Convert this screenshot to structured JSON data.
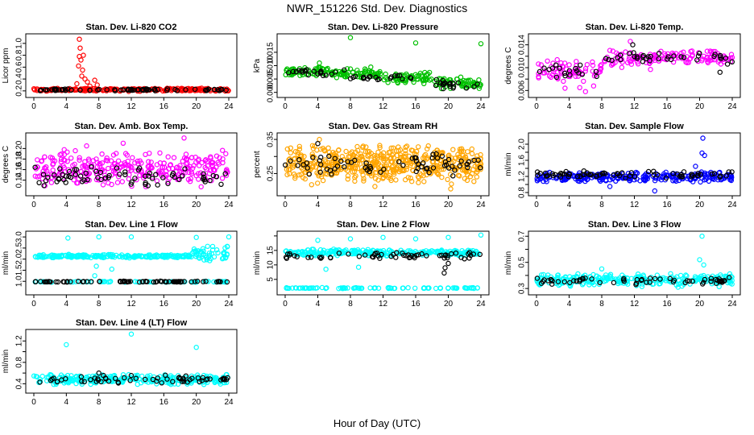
{
  "figure": {
    "title": "NWR_151226  Std. Dev. Diagnostics",
    "xlabel": "Hour of Day (UTC)"
  },
  "chart_data": [
    {
      "type": "scatter",
      "title": "Stan. Dev. Li-820 CO2",
      "ylabel": "Licor ppm",
      "xlim": [
        0,
        24
      ],
      "ylim": [
        0.13,
        1.12
      ],
      "xticks": [
        "0",
        "4",
        "8",
        "12",
        "16",
        "20",
        "24"
      ],
      "yticks": [
        0.2,
        0.4,
        0.6,
        0.8,
        1.0
      ],
      "ytick_labels": [
        "0.2",
        "0.4",
        "0.6",
        "0.8",
        "1.0"
      ],
      "series": [
        {
          "color": "#ff0000",
          "density": 220,
          "bands": [
            [
              0,
              24,
              0.19,
              0.25
            ]
          ],
          "points": [
            [
              5.6,
              1.07
            ],
            [
              5.7,
              0.92
            ],
            [
              5.6,
              0.78
            ],
            [
              5.8,
              0.72
            ],
            [
              6.0,
              0.55
            ],
            [
              5.9,
              0.45
            ],
            [
              6.3,
              0.4
            ],
            [
              6.6,
              0.35
            ],
            [
              7.5,
              0.38
            ],
            [
              7.8,
              0.3
            ],
            [
              5.3,
              0.32
            ],
            [
              6.9,
              0.28
            ],
            [
              5.5,
              0.62
            ],
            [
              6.1,
              0.8
            ]
          ]
        },
        {
          "color": "#000000",
          "density": 70,
          "bands": [
            [
              0,
              24,
              0.2,
              0.24
            ]
          ],
          "points": []
        }
      ]
    },
    {
      "type": "scatter",
      "title": "Stan. Dev. Li-820 Pressure",
      "ylabel": "kPa",
      "xlim": [
        0,
        24
      ],
      "ylim": [
        -0.001,
        0.021
      ],
      "xticks": [
        "0",
        "4",
        "8",
        "12",
        "16",
        "20",
        "24"
      ],
      "yticks": [
        0.0,
        0.005,
        0.01,
        0.015
      ],
      "ytick_labels": [
        "0.000",
        "0.005",
        "0.010",
        "0.015"
      ],
      "series": [
        {
          "color": "#00c000",
          "density": 240,
          "bands": [
            [
              0,
              6,
              0.006,
              0.01
            ],
            [
              6,
              12,
              0.005,
              0.009
            ],
            [
              12,
              18,
              0.003,
              0.008
            ],
            [
              18,
              24,
              0.001,
              0.006
            ]
          ],
          "points": [
            [
              8.0,
              0.0205
            ],
            [
              16.0,
              0.0185
            ],
            [
              24.0,
              0.0182
            ],
            [
              4.2,
              0.011
            ],
            [
              10.5,
              0.0095
            ]
          ]
        },
        {
          "color": "#000000",
          "density": 60,
          "bands": [
            [
              0,
              8,
              0.006,
              0.009
            ],
            [
              8,
              16,
              0.004,
              0.007
            ],
            [
              16,
              24,
              0.001,
              0.005
            ]
          ],
          "points": []
        }
      ]
    },
    {
      "type": "scatter",
      "title": "Stan. Dev. Li-820 Temp.",
      "ylabel": "degrees C",
      "xlim": [
        0,
        24
      ],
      "ylim": [
        0.0052,
        0.0155
      ],
      "xticks": [
        "0",
        "4",
        "8",
        "12",
        "16",
        "20",
        "24"
      ],
      "yticks": [
        0.006,
        0.008,
        0.01,
        0.012,
        0.014
      ],
      "ytick_labels": [
        "0.006",
        "",
        "0.010",
        "",
        "0.014"
      ],
      "series": [
        {
          "color": "#ff00ff",
          "density": 200,
          "bands": [
            [
              0,
              8,
              0.0075,
              0.0115
            ],
            [
              8,
              14,
              0.0095,
              0.0135
            ],
            [
              14,
              24,
              0.0105,
              0.0132
            ]
          ],
          "points": [
            [
              6.0,
              0.0058
            ],
            [
              5.3,
              0.0065
            ],
            [
              11.5,
              0.0146
            ],
            [
              3.5,
              0.0064
            ],
            [
              7.0,
              0.0068
            ]
          ]
        },
        {
          "color": "#000000",
          "density": 55,
          "bands": [
            [
              0,
              8,
              0.008,
              0.011
            ],
            [
              8,
              24,
              0.0105,
              0.0128
            ]
          ],
          "points": [
            [
              11.8,
              0.014
            ],
            [
              22.5,
              0.0092
            ]
          ]
        }
      ]
    },
    {
      "type": "scatter",
      "title": "Stan. Dev. Amb. Box Temp.",
      "ylabel": "degrees C",
      "xlim": [
        0,
        24
      ],
      "ylim": [
        0.115,
        0.225
      ],
      "xticks": [
        "0",
        "4",
        "8",
        "12",
        "16",
        "20",
        "24"
      ],
      "yticks": [
        0.14,
        0.16,
        0.18,
        0.2
      ],
      "ytick_labels": [
        "0.14",
        "0.16",
        "0.18",
        "0.20"
      ],
      "series": [
        {
          "color": "#ff00ff",
          "density": 300,
          "bands": [
            [
              0,
              24,
              0.125,
              0.2
            ]
          ],
          "points": [
            [
              18.5,
              0.22
            ],
            [
              11.0,
              0.21
            ],
            [
              6.5,
              0.205
            ]
          ]
        },
        {
          "color": "#000000",
          "density": 70,
          "bands": [
            [
              0,
              24,
              0.128,
              0.17
            ]
          ],
          "points": []
        }
      ]
    },
    {
      "type": "scatter",
      "title": "Stan. Dev. Gas Stream RH",
      "ylabel": "percent",
      "xlim": [
        0,
        24
      ],
      "ylim": [
        0.192,
        0.362
      ],
      "xticks": [
        "0",
        "4",
        "8",
        "12",
        "16",
        "20",
        "24"
      ],
      "yticks": [
        0.25,
        0.3,
        0.35
      ],
      "ytick_labels": [
        "0.25",
        "",
        "0.35"
      ],
      "series": [
        {
          "color": "#ffa500",
          "density": 520,
          "bands": [
            [
              0,
              24,
              0.215,
              0.34
            ]
          ],
          "points": [
            [
              4.2,
              0.35
            ],
            [
              20.3,
              0.205
            ],
            [
              11.0,
              0.212
            ]
          ]
        },
        {
          "color": "#000000",
          "density": 70,
          "bands": [
            [
              0,
              24,
              0.24,
              0.31
            ]
          ],
          "points": [
            [
              4.0,
              0.338
            ]
          ]
        }
      ]
    },
    {
      "type": "scatter",
      "title": "Stan. Dev. Sample Flow",
      "ylabel": "ml/min",
      "xlim": [
        0,
        24
      ],
      "ylim": [
        0.78,
        2.22
      ],
      "xticks": [
        "0",
        "4",
        "8",
        "12",
        "16",
        "20",
        "24"
      ],
      "yticks": [
        0.8,
        1.0,
        1.2,
        1.4,
        1.6,
        1.8,
        2.0
      ],
      "ytick_labels": [
        "0.8",
        "",
        "1.2",
        "",
        "1.6",
        "",
        "2.0"
      ],
      "series": [
        {
          "color": "#0000ff",
          "density": 260,
          "bands": [
            [
              0,
              24,
              1.05,
              1.32
            ]
          ],
          "points": [
            [
              20.4,
              2.15
            ],
            [
              20.3,
              1.78
            ],
            [
              20.6,
              1.72
            ],
            [
              14.5,
              0.84
            ],
            [
              9.0,
              0.95
            ],
            [
              19.5,
              1.45
            ]
          ]
        },
        {
          "color": "#000000",
          "density": 70,
          "bands": [
            [
              0,
              24,
              1.15,
              1.35
            ]
          ],
          "points": []
        }
      ]
    },
    {
      "type": "scatter",
      "title": "Stan. Dev. Line 1 Flow",
      "ylabel": "ml/min",
      "xlim": [
        0,
        24
      ],
      "ylim": [
        0.5,
        3.15
      ],
      "xticks": [
        "0",
        "4",
        "8",
        "12",
        "16",
        "20",
        "24"
      ],
      "yticks": [
        1.0,
        1.5,
        2.0,
        2.5,
        3.0
      ],
      "ytick_labels": [
        "1.0",
        "1.5",
        "2.0",
        "2.5",
        "3.0"
      ],
      "series": [
        {
          "color": "#00ffff",
          "density": 260,
          "bands": [
            [
              0,
              19.5,
              2.05,
              2.22
            ],
            [
              19.5,
              24,
              1.9,
              2.65
            ]
          ],
          "points": [
            [
              4.2,
              2.95
            ],
            [
              8.0,
              3.0
            ],
            [
              12.0,
              3.0
            ],
            [
              24.0,
              3.0
            ],
            [
              20.0,
              2.98
            ],
            [
              7.7,
              1.68
            ],
            [
              9.6,
              1.55
            ],
            [
              7.5,
              1.25
            ]
          ]
        },
        {
          "color": "#00ffff",
          "density": 80,
          "bands": [
            [
              0,
              24,
              0.96,
              1.0
            ]
          ],
          "points": []
        },
        {
          "color": "#000000",
          "density": 75,
          "bands": [
            [
              0,
              24,
              0.96,
              1.01
            ]
          ],
          "points": []
        }
      ]
    },
    {
      "type": "scatter",
      "title": "Stan. Dev. Line 2 Flow",
      "ylabel": "ml/min",
      "xlim": [
        0,
        24
      ],
      "ylim": [
        0.5,
        20.8
      ],
      "xticks": [
        "0",
        "4",
        "8",
        "12",
        "16",
        "20",
        "24"
      ],
      "yticks": [
        5,
        10,
        15,
        20
      ],
      "ytick_labels": [
        "5",
        "10",
        "15",
        ""
      ],
      "series": [
        {
          "color": "#00ffff",
          "density": 260,
          "bands": [
            [
              0,
              24,
              13.0,
              15.5
            ]
          ],
          "points": [
            [
              4.0,
              18.5
            ],
            [
              8.0,
              19.0
            ],
            [
              12.0,
              19.5
            ],
            [
              16.0,
              19.0
            ],
            [
              20.0,
              19.5
            ],
            [
              24.0,
              20.3
            ],
            [
              5.0,
              8.5
            ],
            [
              9.0,
              9.2
            ]
          ]
        },
        {
          "color": "#00ffff",
          "density": 90,
          "bands": [
            [
              0,
              24,
              1.8,
              2.2
            ]
          ],
          "points": []
        },
        {
          "color": "#000000",
          "density": 60,
          "bands": [
            [
              0,
              24,
              12.0,
              14.5
            ]
          ],
          "points": [
            [
              19.5,
              7.2
            ],
            [
              20.0,
              10.5
            ],
            [
              19.6,
              9.0
            ]
          ]
        }
      ]
    },
    {
      "type": "scatter",
      "title": "Stan. Dev. Line 3 Flow",
      "ylabel": "ml/min",
      "xlim": [
        0,
        24
      ],
      "ylim": [
        0.27,
        0.72
      ],
      "xticks": [
        "0",
        "4",
        "8",
        "12",
        "16",
        "20",
        "24"
      ],
      "yticks": [
        0.3,
        0.4,
        0.5,
        0.6,
        0.7
      ],
      "ytick_labels": [
        "0.3",
        "",
        "0.5",
        "",
        "0.7"
      ],
      "series": [
        {
          "color": "#00ffff",
          "density": 280,
          "bands": [
            [
              0,
              24,
              0.31,
              0.42
            ]
          ],
          "points": [
            [
              20.3,
              0.7
            ],
            [
              20.0,
              0.52
            ],
            [
              20.5,
              0.48
            ],
            [
              8.0,
              0.45
            ]
          ]
        },
        {
          "color": "#000000",
          "density": 60,
          "bands": [
            [
              0,
              24,
              0.33,
              0.39
            ]
          ],
          "points": []
        }
      ]
    },
    {
      "type": "scatter",
      "title": "Stan. Dev. Line 4 (LT) Flow",
      "ylabel": "ml/min",
      "xlim": [
        0,
        24
      ],
      "ylim": [
        0.27,
        1.37
      ],
      "xticks": [
        "0",
        "4",
        "8",
        "12",
        "16",
        "20",
        "24"
      ],
      "yticks": [
        0.4,
        0.6,
        0.8,
        1.0,
        1.2
      ],
      "ytick_labels": [
        "0.4",
        "",
        "0.8",
        "",
        "1.2"
      ],
      "series": [
        {
          "color": "#00ffff",
          "density": 280,
          "bands": [
            [
              0,
              24,
              0.38,
              0.58
            ]
          ],
          "points": [
            [
              4.0,
              1.13
            ],
            [
              12.0,
              1.33
            ],
            [
              20.0,
              1.08
            ]
          ]
        },
        {
          "color": "#000000",
          "density": 60,
          "bands": [
            [
              0,
              24,
              0.4,
              0.56
            ]
          ],
          "points": [
            [
              8.0,
              0.6
            ],
            [
              16.2,
              0.56
            ]
          ]
        }
      ]
    }
  ]
}
